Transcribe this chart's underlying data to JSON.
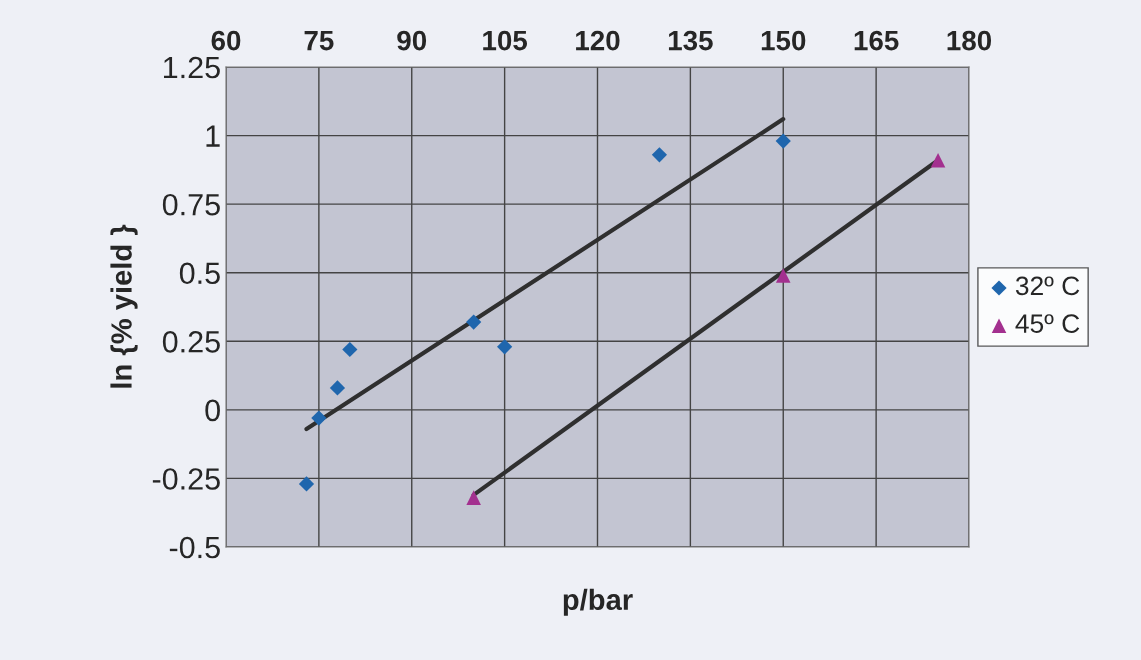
{
  "chart_data": {
    "type": "scatter",
    "xlabel": "p/bar",
    "ylabel": "ln {% yield }",
    "xlim": [
      60,
      180
    ],
    "xticks": [
      60,
      75,
      90,
      105,
      120,
      135,
      150,
      165,
      180
    ],
    "ylim": [
      -0.5,
      1.25
    ],
    "yticks": [
      -0.5,
      -0.25,
      0,
      0.25,
      0.5,
      0.75,
      1,
      1.25
    ],
    "grid": true,
    "legend": "right",
    "series": [
      {
        "name": "32º C",
        "marker": "diamond",
        "color": "#1f66ad",
        "x": [
          73,
          75,
          78,
          80,
          100,
          105,
          130,
          150
        ],
        "values": [
          -0.27,
          -0.03,
          0.08,
          0.22,
          0.32,
          0.23,
          0.93,
          0.98
        ]
      },
      {
        "name": "45º C",
        "marker": "triangle",
        "color": "#a3308f",
        "x": [
          100,
          150,
          175
        ],
        "values": [
          -0.32,
          0.49,
          0.91
        ]
      },
      {
        "type": "line",
        "marker": "none",
        "color": "#2f2f2f",
        "x": [
          73,
          150
        ],
        "values": [
          -0.07,
          1.06
        ]
      },
      {
        "type": "line",
        "marker": "none",
        "color": "#2f2f2f",
        "x": [
          100,
          175
        ],
        "values": [
          -0.31,
          0.91
        ]
      }
    ]
  }
}
